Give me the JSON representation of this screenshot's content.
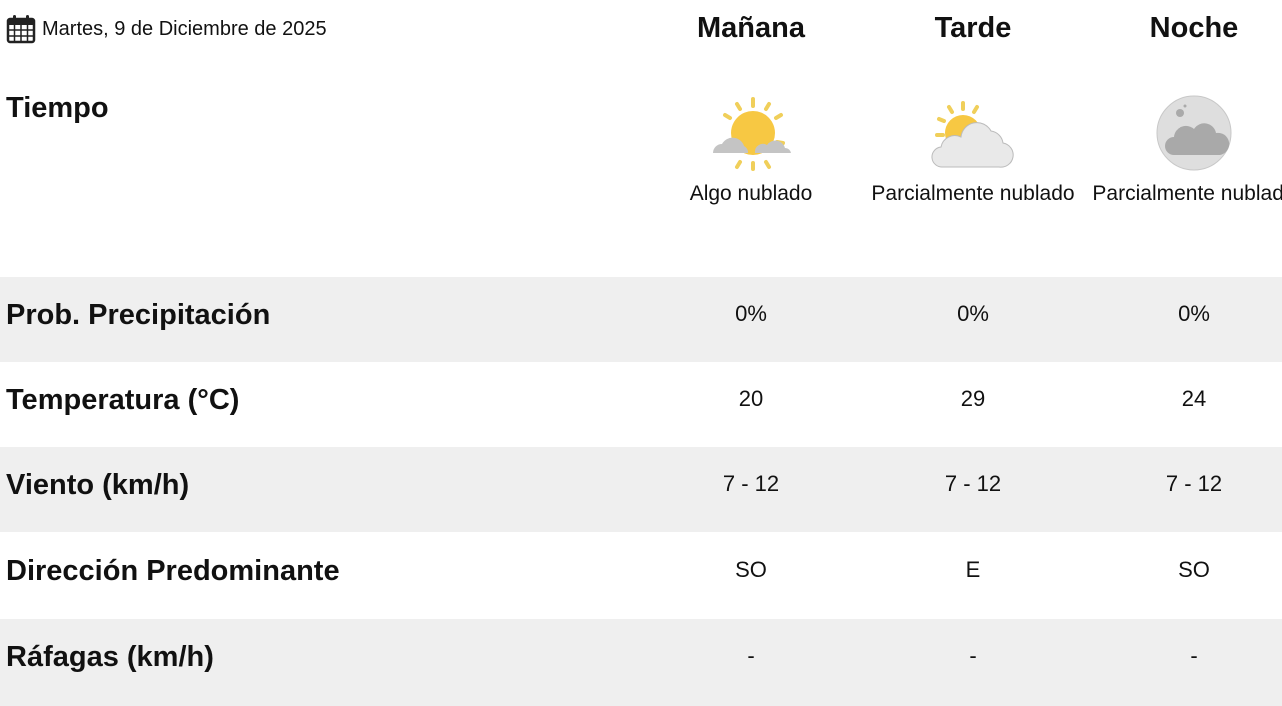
{
  "date": {
    "icon": "calendar-icon",
    "text": "Martes, 9 de Diciembre de 2025"
  },
  "periods": [
    "Mañana",
    "Tarde",
    "Noche"
  ],
  "weather": {
    "label": "Tiempo",
    "items": [
      {
        "icon": "sun-cloud-icon",
        "desc": "Algo nublado"
      },
      {
        "icon": "partly-cloudy-icon",
        "desc": "Parcialmente nublado"
      },
      {
        "icon": "moon-cloud-icon",
        "desc": "Parcialmente nublado"
      }
    ]
  },
  "rows": [
    {
      "label": "Prob. Precipitación",
      "values": [
        "0%",
        "0%",
        "0%"
      ]
    },
    {
      "label": "Temperatura (°C)",
      "values": [
        "20",
        "29",
        "24"
      ]
    },
    {
      "label": "Viento (km/h)",
      "values": [
        "7 - 12",
        "7 - 12",
        "7 - 12"
      ]
    },
    {
      "label": "Dirección Predominante",
      "values": [
        "SO",
        "E",
        "SO"
      ]
    },
    {
      "label": "Ráfagas (km/h)",
      "values": [
        "-",
        "-",
        "-"
      ]
    }
  ],
  "colors": {
    "row_alt": "#efefef",
    "sun": "#f7c843",
    "cloud": "#c8c8c8"
  }
}
